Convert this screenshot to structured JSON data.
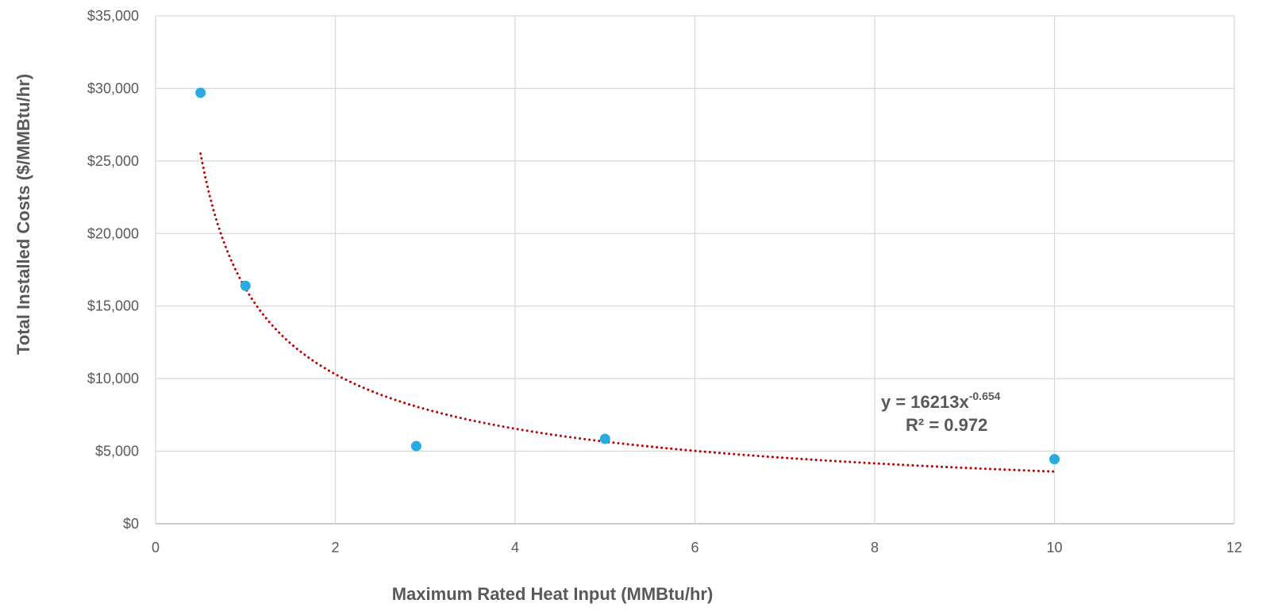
{
  "chart_data": {
    "type": "scatter",
    "title": "",
    "xlabel": "Maximum Rated Heat Input (MMBtu/hr)",
    "ylabel": "Total Installed Costs ($/MMBtu/hr)",
    "xlim": [
      0,
      12
    ],
    "ylim": [
      0,
      35000
    ],
    "x_ticks": [
      0,
      2,
      4,
      6,
      8,
      10,
      12
    ],
    "x_tick_labels": [
      "0",
      "2",
      "4",
      "6",
      "8",
      "10",
      "12"
    ],
    "y_ticks": [
      0,
      5000,
      10000,
      15000,
      20000,
      25000,
      30000,
      35000
    ],
    "y_tick_labels": [
      "$0",
      "$5,000",
      "$10,000",
      "$15,000",
      "$20,000",
      "$25,000",
      "$30,000",
      "$35,000"
    ],
    "grid": true,
    "legend": "none",
    "series": [
      {
        "x": [
          0.5,
          1.0,
          2.9,
          5.0,
          10.0
        ],
        "y": [
          29700,
          16400,
          5350,
          5850,
          4450
        ],
        "color": "#29abe2"
      }
    ],
    "trendline": {
      "type": "power",
      "coefficient": 16213,
      "exponent": -0.654,
      "x_range": [
        0.5,
        10
      ],
      "color": "#c00000",
      "style": "dotted",
      "equation_prefix": "y = 16213x",
      "equation_exponent": "-0.654",
      "r_squared_label": "R² = 0.972"
    }
  }
}
